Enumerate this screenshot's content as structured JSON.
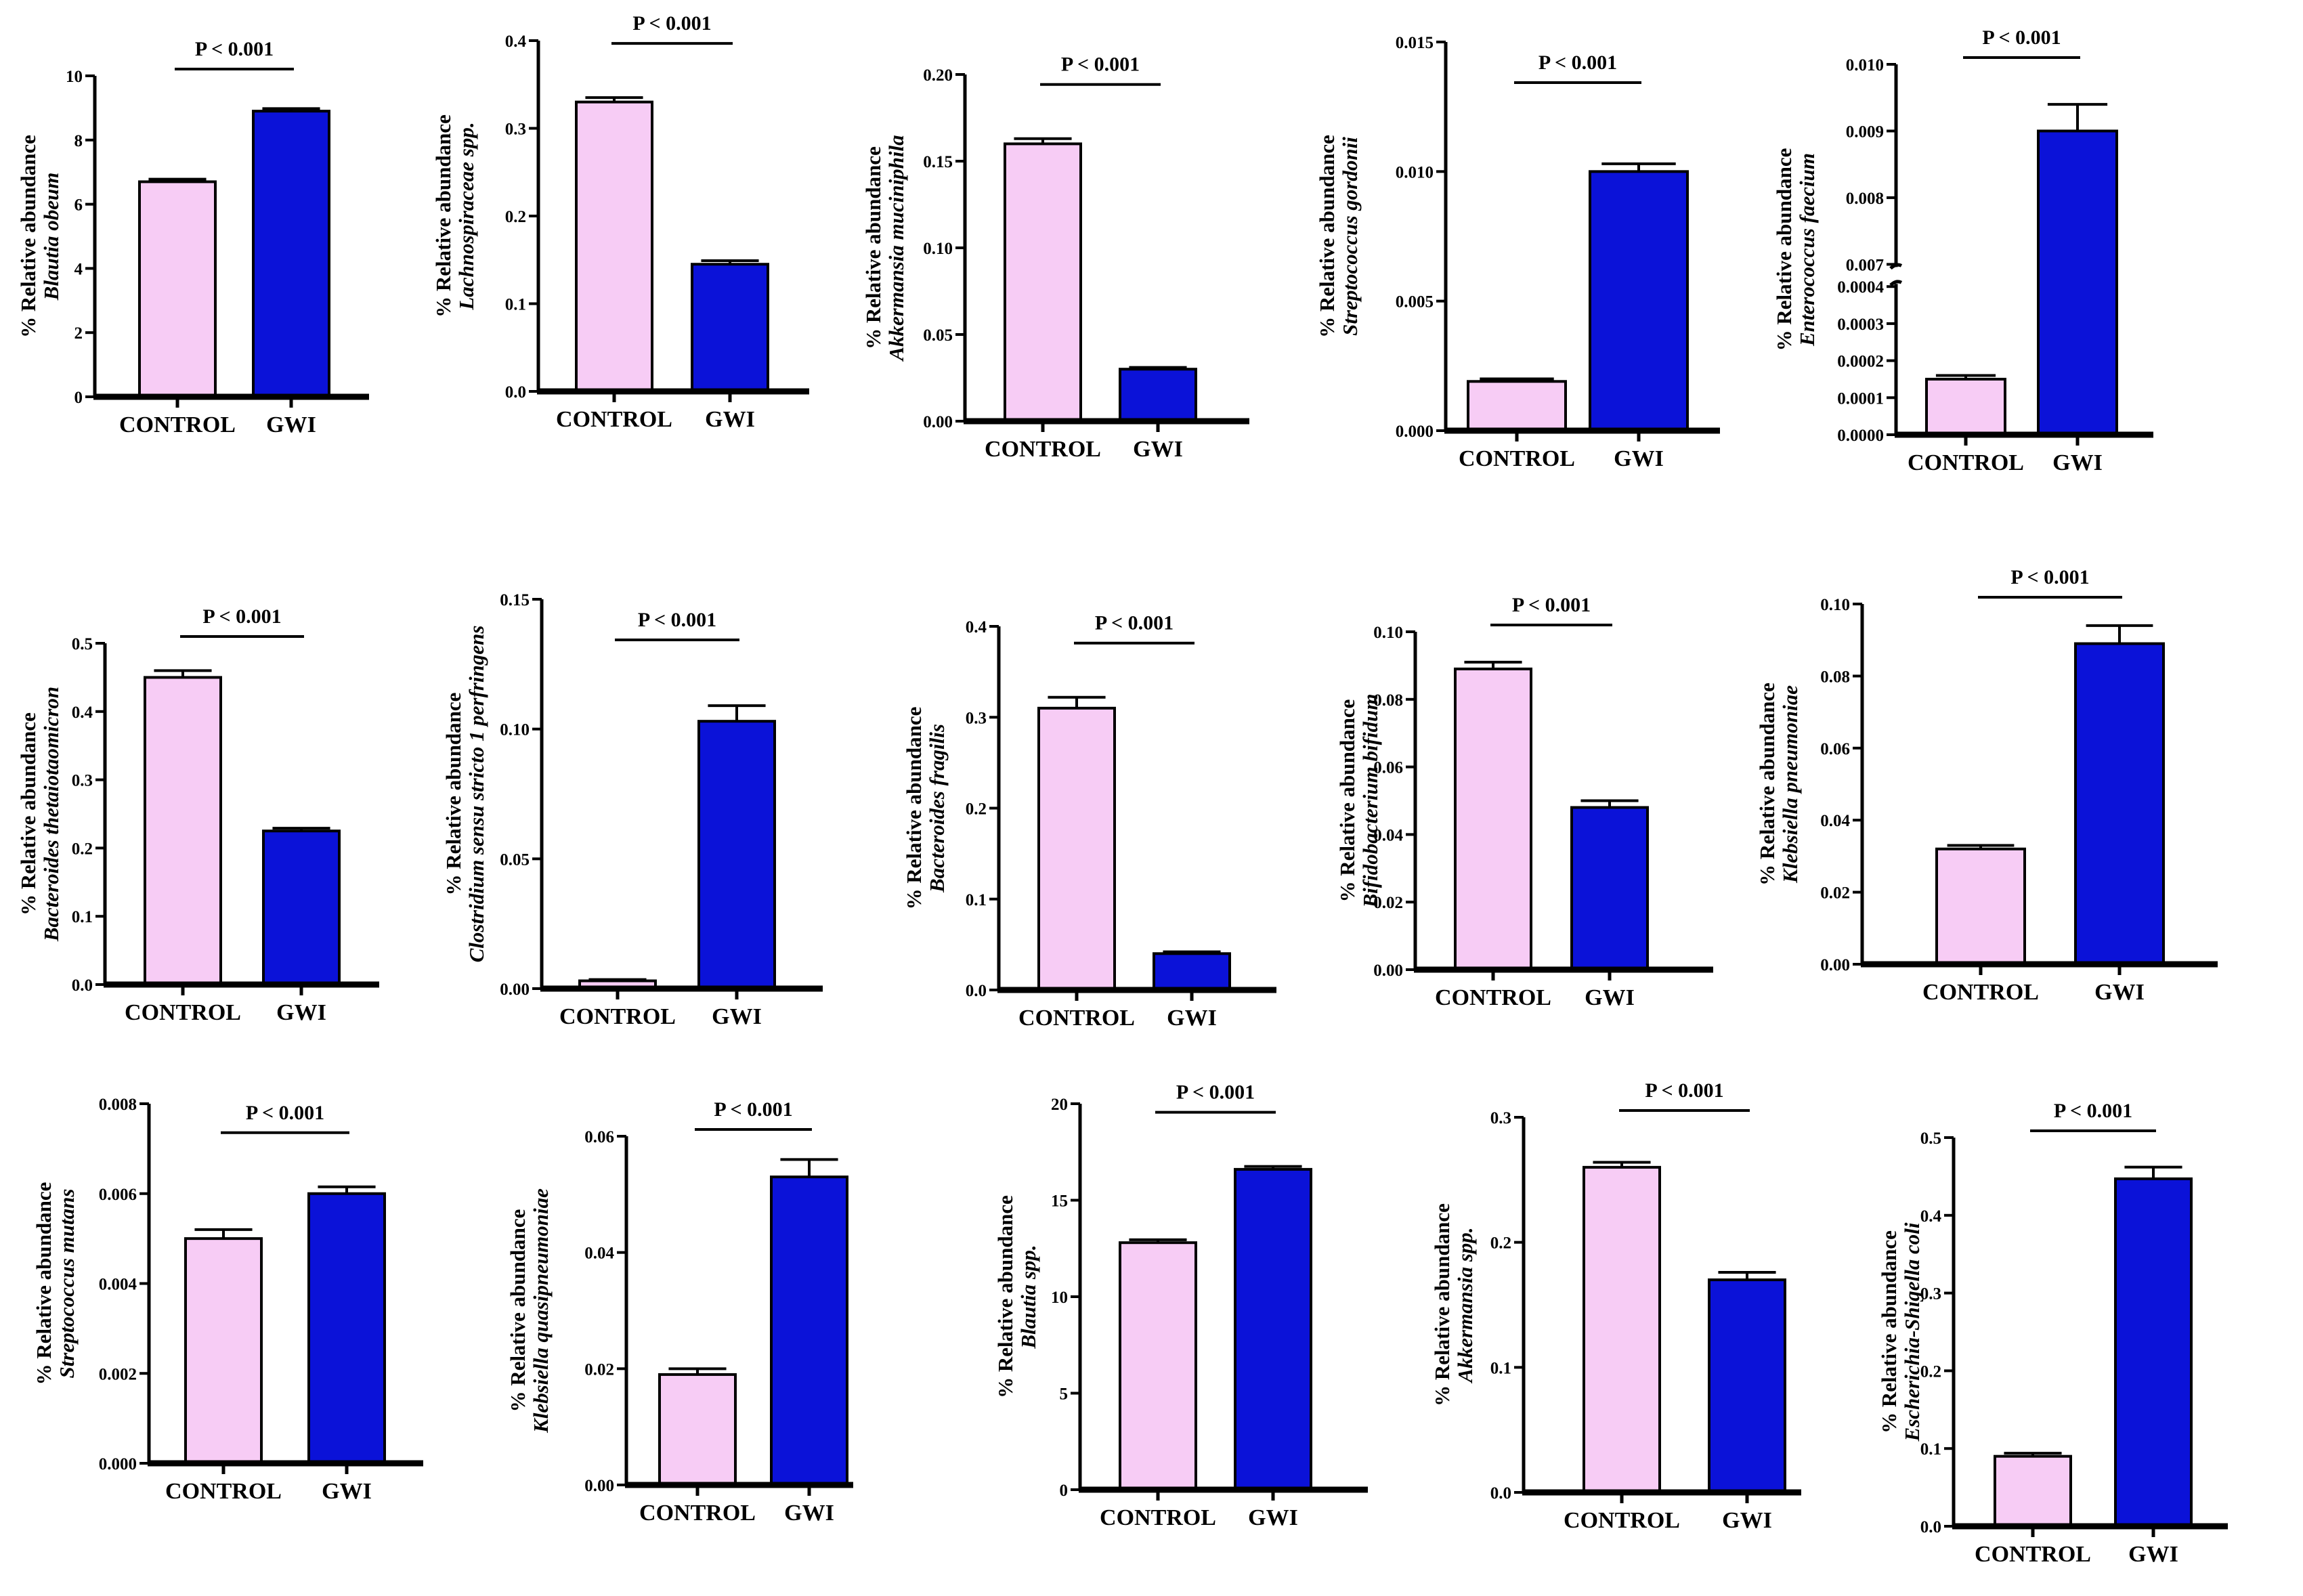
{
  "chart_data": [
    {
      "type": "bar",
      "title": "",
      "ylabel": "% Relative abundance",
      "species": "Blautia obeum",
      "categories": [
        "CONTROL",
        "GWI"
      ],
      "values": [
        6.7,
        8.9
      ],
      "errors": [
        0.08,
        0.08
      ],
      "ylim": [
        0,
        10
      ],
      "yticks": [
        "0",
        "2",
        "4",
        "6",
        "8",
        "10"
      ],
      "pvalue": "P < 0.001",
      "colors": [
        "#f7ccf5",
        "#0b12d8"
      ]
    },
    {
      "type": "bar",
      "title": "",
      "ylabel": "% Relative abundance",
      "species": "Lachnospiraceae spp.",
      "categories": [
        "CONTROL",
        "GWI"
      ],
      "values": [
        0.33,
        0.145
      ],
      "errors": [
        0.005,
        0.004
      ],
      "ylim": [
        0,
        0.4
      ],
      "yticks": [
        "0.0",
        "0.1",
        "0.2",
        "0.3",
        "0.4"
      ],
      "pvalue": "P < 0.001",
      "colors": [
        "#f7ccf5",
        "#0b12d8"
      ]
    },
    {
      "type": "bar",
      "title": "",
      "ylabel": "% Relative abundance",
      "species": "Akkermansia muciniphila",
      "categories": [
        "CONTROL",
        "GWI"
      ],
      "values": [
        0.16,
        0.03
      ],
      "errors": [
        0.003,
        0.001
      ],
      "ylim": [
        0,
        0.2
      ],
      "yticks": [
        "0.00",
        "0.05",
        "0.10",
        "0.15",
        "0.20"
      ],
      "pvalue": "P < 0.001",
      "colors": [
        "#f7ccf5",
        "#0b12d8"
      ]
    },
    {
      "type": "bar",
      "title": "",
      "ylabel": "% Relative abundance",
      "species": "Streptococcus gordonii",
      "categories": [
        "CONTROL",
        "GWI"
      ],
      "values": [
        0.0019,
        0.01
      ],
      "errors": [
        0.0001,
        0.0003
      ],
      "ylim": [
        0,
        0.015
      ],
      "yticks": [
        "0.000",
        "0.005",
        "0.010",
        "0.015"
      ],
      "pvalue": "P < 0.001",
      "colors": [
        "#f7ccf5",
        "#0b12d8"
      ]
    },
    {
      "type": "bar",
      "title": "",
      "ylabel": "% Relative abundance",
      "species": "Enterococcus faecium",
      "categories": [
        "CONTROL",
        "GWI"
      ],
      "values": [
        0.00015,
        0.009
      ],
      "errors": [
        1e-05,
        0.0004
      ],
      "ylim": [
        0,
        0.01
      ],
      "axis_break": {
        "lower": [
          0,
          0.0004
        ],
        "upper": [
          0.007,
          0.01
        ]
      },
      "yticks": [
        "0.0000",
        "0.0001",
        "0.0002",
        "0.0003",
        "0.0004",
        "0.007",
        "0.008",
        "0.009",
        "0.010"
      ],
      "pvalue": "P < 0.001",
      "colors": [
        "#f7ccf5",
        "#0b12d8"
      ]
    },
    {
      "type": "bar",
      "title": "",
      "ylabel": "% Relative abundance",
      "species": "Bacteroides thetaiotaomicron",
      "categories": [
        "CONTROL",
        "GWI"
      ],
      "values": [
        0.45,
        0.225
      ],
      "errors": [
        0.01,
        0.004
      ],
      "ylim": [
        0,
        0.5
      ],
      "yticks": [
        "0.0",
        "0.1",
        "0.2",
        "0.3",
        "0.4",
        "0.5"
      ],
      "pvalue": "P < 0.001",
      "colors": [
        "#f7ccf5",
        "#0b12d8"
      ]
    },
    {
      "type": "bar",
      "title": "",
      "ylabel": "% Relative abundance",
      "species": "Clostridium sensu stricto 1 perfringens",
      "categories": [
        "CONTROL",
        "GWI"
      ],
      "values": [
        0.003,
        0.103
      ],
      "errors": [
        0.0005,
        0.006
      ],
      "ylim": [
        0,
        0.15
      ],
      "yticks": [
        "0.00",
        "0.05",
        "0.10",
        "0.15"
      ],
      "pvalue": "P < 0.001",
      "colors": [
        "#f7ccf5",
        "#0b12d8"
      ]
    },
    {
      "type": "bar",
      "title": "",
      "ylabel": "% Relative abundance",
      "species": "Bacteroides fragilis",
      "categories": [
        "CONTROL",
        "GWI"
      ],
      "values": [
        0.31,
        0.04
      ],
      "errors": [
        0.012,
        0.002
      ],
      "ylim": [
        0,
        0.4
      ],
      "yticks": [
        "0.0",
        "0.1",
        "0.2",
        "0.3",
        "0.4"
      ],
      "pvalue": "P < 0.001",
      "colors": [
        "#f7ccf5",
        "#0b12d8"
      ]
    },
    {
      "type": "bar",
      "title": "",
      "ylabel": "% Relative abundance",
      "species": "Bifidobacterium bifidum",
      "categories": [
        "CONTROL",
        "GWI"
      ],
      "values": [
        0.089,
        0.048
      ],
      "errors": [
        0.002,
        0.002
      ],
      "ylim": [
        0,
        0.1
      ],
      "yticks": [
        "0.00",
        "0.02",
        "0.04",
        "0.06",
        "0.08",
        "0.10"
      ],
      "pvalue": "P < 0.001",
      "colors": [
        "#f7ccf5",
        "#0b12d8"
      ]
    },
    {
      "type": "bar",
      "title": "",
      "ylabel": "% Relative abundance",
      "species": "Klebsiella pneumoniae",
      "categories": [
        "CONTROL",
        "GWI"
      ],
      "values": [
        0.032,
        0.089
      ],
      "errors": [
        0.001,
        0.005
      ],
      "ylim": [
        0,
        0.1
      ],
      "yticks": [
        "0.00",
        "0.02",
        "0.04",
        "0.06",
        "0.08",
        "0.10"
      ],
      "pvalue": "P < 0.001",
      "colors": [
        "#f7ccf5",
        "#0b12d8"
      ]
    },
    {
      "type": "bar",
      "title": "",
      "ylabel": "% Relative abundance",
      "species": "Streptococcus mutans",
      "categories": [
        "CONTROL",
        "GWI"
      ],
      "values": [
        0.005,
        0.006
      ],
      "errors": [
        0.0002,
        0.00015
      ],
      "ylim": [
        0,
        0.008
      ],
      "yticks": [
        "0.000",
        "0.002",
        "0.004",
        "0.006",
        "0.008"
      ],
      "pvalue": "P < 0.001",
      "colors": [
        "#f7ccf5",
        "#0b12d8"
      ]
    },
    {
      "type": "bar",
      "title": "",
      "ylabel": "% Relative abundance",
      "species": "Klebsiella quasipneumoniae",
      "categories": [
        "CONTROL",
        "GWI"
      ],
      "values": [
        0.019,
        0.053
      ],
      "errors": [
        0.001,
        0.003
      ],
      "ylim": [
        0,
        0.06
      ],
      "yticks": [
        "0.00",
        "0.02",
        "0.04",
        "0.06"
      ],
      "pvalue": "P < 0.001",
      "colors": [
        "#f7ccf5",
        "#0b12d8"
      ]
    },
    {
      "type": "bar",
      "title": "",
      "ylabel": "% Relative abundance",
      "species": "Blautia spp.",
      "categories": [
        "CONTROL",
        "GWI"
      ],
      "values": [
        12.8,
        16.6
      ],
      "errors": [
        0.15,
        0.15
      ],
      "ylim": [
        0,
        20
      ],
      "yticks": [
        "0",
        "5",
        "10",
        "15",
        "20"
      ],
      "pvalue": "P < 0.001",
      "colors": [
        "#f7ccf5",
        "#0b12d8"
      ]
    },
    {
      "type": "bar",
      "title": "",
      "ylabel": "% Relative abundance",
      "species": "Akkermansia spp.",
      "categories": [
        "CONTROL",
        "GWI"
      ],
      "values": [
        0.26,
        0.17
      ],
      "errors": [
        0.004,
        0.006
      ],
      "ylim": [
        0,
        0.3
      ],
      "yticks": [
        "0.0",
        "0.1",
        "0.2",
        "0.3"
      ],
      "pvalue": "P < 0.001",
      "colors": [
        "#f7ccf5",
        "#0b12d8"
      ]
    },
    {
      "type": "bar",
      "title": "",
      "ylabel": "% Relative abundance",
      "species": "Escherichia-Shigella coli",
      "categories": [
        "CONTROL",
        "GWI"
      ],
      "values": [
        0.09,
        0.447
      ],
      "errors": [
        0.004,
        0.015
      ],
      "ylim": [
        0,
        0.5
      ],
      "yticks": [
        "0.0",
        "0.1",
        "0.2",
        "0.3",
        "0.4",
        "0.5"
      ],
      "pvalue": "P < 0.001",
      "colors": [
        "#f7ccf5",
        "#0b12d8"
      ]
    }
  ]
}
